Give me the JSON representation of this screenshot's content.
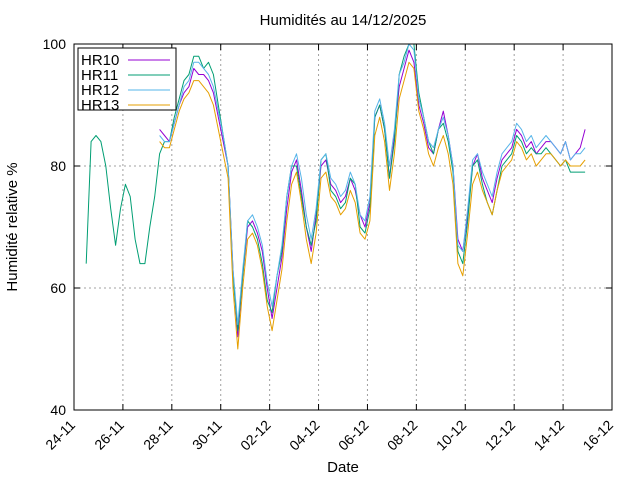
{
  "chart_data": {
    "type": "line",
    "title": "Humidités au 14/12/2025",
    "xlabel": "Date",
    "ylabel": "Humidité relative %",
    "ylim": [
      40,
      100
    ],
    "yticks": [
      40,
      60,
      80,
      100
    ],
    "xlim": [
      0,
      22
    ],
    "xticks": [
      {
        "x": 0,
        "label": "24-11"
      },
      {
        "x": 2,
        "label": "26-11"
      },
      {
        "x": 4,
        "label": "28-11"
      },
      {
        "x": 6,
        "label": "30-11"
      },
      {
        "x": 8,
        "label": "02-12"
      },
      {
        "x": 10,
        "label": "04-12"
      },
      {
        "x": 12,
        "label": "06-12"
      },
      {
        "x": 14,
        "label": "08-12"
      },
      {
        "x": 16,
        "label": "10-12"
      },
      {
        "x": 18,
        "label": "12-12"
      },
      {
        "x": 20,
        "label": "14-12"
      },
      {
        "x": 22,
        "label": "16-12"
      }
    ],
    "grid": true,
    "legend_position": "top-left",
    "x": [
      0.5,
      0.7,
      0.9,
      1.1,
      1.3,
      1.5,
      1.7,
      1.9,
      2.1,
      2.3,
      2.5,
      2.7,
      2.9,
      3.1,
      3.3,
      3.5,
      3.7,
      3.9,
      4.1,
      4.3,
      4.5,
      4.7,
      4.9,
      5.1,
      5.3,
      5.5,
      5.7,
      5.9,
      6.1,
      6.3,
      6.5,
      6.7,
      6.9,
      7.1,
      7.3,
      7.5,
      7.7,
      7.9,
      8.1,
      8.3,
      8.5,
      8.7,
      8.9,
      9.1,
      9.3,
      9.5,
      9.7,
      9.9,
      10.1,
      10.3,
      10.5,
      10.7,
      10.9,
      11.1,
      11.3,
      11.5,
      11.7,
      11.9,
      12.1,
      12.3,
      12.5,
      12.7,
      12.9,
      13.1,
      13.3,
      13.5,
      13.7,
      13.9,
      14.1,
      14.3,
      14.5,
      14.7,
      14.9,
      15.1,
      15.3,
      15.5,
      15.7,
      15.9,
      16.1,
      16.3,
      16.5,
      16.7,
      16.9,
      17.1,
      17.3,
      17.5,
      17.7,
      17.9,
      18.1,
      18.3,
      18.5,
      18.7,
      18.9,
      19.1,
      19.3,
      19.5,
      19.7,
      19.9,
      20.1,
      20.3,
      20.5,
      20.7,
      20.9
    ],
    "series": [
      {
        "name": "HR10",
        "color": "#9400d3",
        "values": [
          null,
          null,
          null,
          null,
          null,
          null,
          null,
          null,
          null,
          null,
          null,
          null,
          null,
          null,
          null,
          86,
          85,
          84,
          87,
          90,
          92,
          93,
          96,
          95,
          95,
          94,
          92,
          88,
          84,
          80,
          63,
          52,
          62,
          70,
          71,
          69,
          66,
          60,
          55,
          60,
          65,
          73,
          79,
          81,
          76,
          70,
          66,
          72,
          80,
          81,
          77,
          76,
          74,
          75,
          78,
          76,
          72,
          70,
          74,
          88,
          90,
          86,
          78,
          85,
          93,
          96,
          99,
          97,
          90,
          87,
          83,
          82,
          86,
          89,
          85,
          80,
          68,
          66,
          72,
          80,
          82,
          78,
          76,
          74,
          78,
          81,
          82,
          83,
          86,
          85,
          83,
          84,
          82,
          83,
          84,
          84,
          83,
          82,
          84,
          81,
          82,
          83,
          86
        ]
      },
      {
        "name": "HR11",
        "color": "#009e73",
        "values": [
          64,
          84,
          85,
          84,
          80,
          73,
          67,
          73,
          77,
          75,
          68,
          64,
          64,
          70,
          75,
          82,
          84,
          84,
          88,
          91,
          94,
          95,
          98,
          98,
          96,
          97,
          95,
          90,
          85,
          80,
          62,
          53,
          62,
          71,
          70,
          68,
          64,
          58,
          56,
          62,
          66,
          75,
          80,
          80,
          75,
          70,
          67,
          71,
          81,
          82,
          76,
          75,
          73,
          74,
          78,
          77,
          70,
          69,
          73,
          88,
          90,
          86,
          78,
          84,
          95,
          98,
          100,
          100,
          92,
          88,
          84,
          82,
          86,
          87,
          84,
          79,
          66,
          64,
          71,
          80,
          81,
          77,
          74,
          72,
          76,
          80,
          81,
          82,
          85,
          84,
          82,
          83,
          82,
          82,
          83,
          82,
          81,
          80,
          81,
          79,
          79,
          79,
          79
        ]
      },
      {
        "name": "HR12",
        "color": "#56b4e9",
        "values": [
          null,
          null,
          null,
          null,
          null,
          null,
          null,
          null,
          null,
          null,
          null,
          null,
          null,
          null,
          null,
          85,
          84,
          84,
          87,
          90,
          93,
          94,
          97,
          97,
          96,
          95,
          93,
          89,
          85,
          80,
          63,
          54,
          63,
          71,
          72,
          70,
          67,
          61,
          57,
          62,
          67,
          75,
          80,
          82,
          78,
          72,
          68,
          73,
          81,
          82,
          78,
          77,
          75,
          76,
          79,
          77,
          72,
          71,
          75,
          89,
          91,
          87,
          80,
          86,
          95,
          97,
          100,
          99,
          91,
          88,
          84,
          83,
          86,
          88,
          85,
          80,
          67,
          66,
          73,
          81,
          82,
          79,
          77,
          75,
          79,
          82,
          83,
          84,
          87,
          86,
          84,
          85,
          83,
          84,
          85,
          84,
          83,
          82,
          84,
          81,
          82,
          82,
          83
        ]
      },
      {
        "name": "HR13",
        "color": "#e69f00",
        "values": [
          null,
          null,
          null,
          null,
          null,
          null,
          null,
          null,
          null,
          null,
          null,
          null,
          null,
          null,
          null,
          84,
          83,
          83,
          86,
          89,
          91,
          92,
          94,
          94,
          93,
          92,
          90,
          86,
          82,
          78,
          60,
          50,
          60,
          68,
          69,
          67,
          63,
          57,
          53,
          58,
          63,
          71,
          77,
          79,
          74,
          68,
          64,
          69,
          78,
          79,
          75,
          74,
          72,
          73,
          76,
          74,
          69,
          68,
          71,
          85,
          88,
          84,
          76,
          82,
          91,
          94,
          97,
          96,
          89,
          86,
          82,
          80,
          83,
          85,
          82,
          77,
          64,
          62,
          69,
          77,
          79,
          76,
          74,
          72,
          76,
          79,
          80,
          81,
          84,
          83,
          81,
          82,
          80,
          81,
          82,
          82,
          81,
          80,
          81,
          80,
          80,
          80,
          81
        ]
      }
    ]
  }
}
